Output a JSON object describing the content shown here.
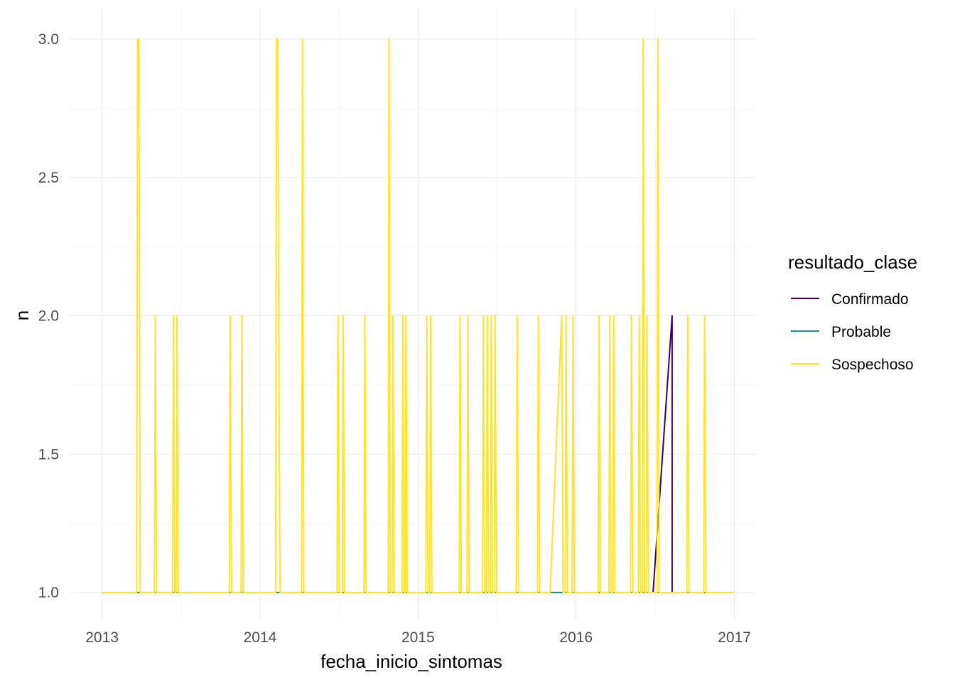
{
  "chart_data": {
    "type": "line",
    "title": "",
    "xlabel": "fecha_inicio_sintomas",
    "ylabel": "n",
    "x_ticks": [
      "2013",
      "2014",
      "2015",
      "2016",
      "2017"
    ],
    "y_ticks": [
      "1.0",
      "1.5",
      "2.0",
      "2.5",
      "3.0"
    ],
    "xlim": [
      "2012-12-31",
      "2016-12-31"
    ],
    "ylim": [
      1.0,
      3.0
    ],
    "grid": true,
    "legend": {
      "title": "resultado_clase",
      "placement": "right",
      "entries": [
        "Confirmado",
        "Probable",
        "Sospechoso"
      ]
    },
    "series": [
      {
        "name": "Confirmado",
        "color": "#440154",
        "points": [
          [
            "2016-06-27",
            1
          ],
          [
            "2016-08-10",
            2
          ],
          [
            "2016-08-10",
            1
          ]
        ]
      },
      {
        "name": "Probable",
        "color": "#21908C",
        "points": [
          [
            "2012-12-31",
            1
          ],
          [
            "2016-12-31",
            1
          ]
        ]
      },
      {
        "name": "Sospechoso",
        "color": "#FDE725",
        "points": [
          [
            "2012-12-31",
            1
          ],
          [
            "2013-03-22",
            1
          ],
          [
            "2013-03-24",
            3
          ],
          [
            "2013-03-27",
            3
          ],
          [
            "2013-03-30",
            1
          ],
          [
            "2013-05-02",
            1
          ],
          [
            "2013-05-04",
            2
          ],
          [
            "2013-05-07",
            1
          ],
          [
            "2013-06-13",
            1
          ],
          [
            "2013-06-15",
            2
          ],
          [
            "2013-06-18",
            1
          ],
          [
            "2013-06-21",
            1
          ],
          [
            "2013-06-23",
            2
          ],
          [
            "2013-06-26",
            1
          ],
          [
            "2013-10-22",
            1
          ],
          [
            "2013-10-24",
            2
          ],
          [
            "2013-10-27",
            1
          ],
          [
            "2013-11-18",
            1
          ],
          [
            "2013-11-20",
            2
          ],
          [
            "2013-11-23",
            1
          ],
          [
            "2014-02-06",
            1
          ],
          [
            "2014-02-08",
            3
          ],
          [
            "2014-02-11",
            3
          ],
          [
            "2014-02-13",
            2
          ],
          [
            "2014-02-16",
            1
          ],
          [
            "2014-04-07",
            1
          ],
          [
            "2014-04-09",
            3
          ],
          [
            "2014-04-12",
            1
          ],
          [
            "2014-06-28",
            1
          ],
          [
            "2014-06-30",
            2
          ],
          [
            "2014-07-03",
            1
          ],
          [
            "2014-07-10",
            1
          ],
          [
            "2014-07-12",
            2
          ],
          [
            "2014-07-15",
            1
          ],
          [
            "2014-08-29",
            1
          ],
          [
            "2014-08-31",
            2
          ],
          [
            "2014-09-03",
            1
          ],
          [
            "2014-10-24",
            1
          ],
          [
            "2014-10-26",
            3
          ],
          [
            "2014-10-29",
            1
          ],
          [
            "2014-11-02",
            1
          ],
          [
            "2014-11-04",
            2
          ],
          [
            "2014-11-07",
            1
          ],
          [
            "2014-11-25",
            1
          ],
          [
            "2014-11-27",
            2
          ],
          [
            "2014-11-30",
            1
          ],
          [
            "2014-12-02",
            1
          ],
          [
            "2014-12-04",
            2
          ],
          [
            "2014-12-07",
            1
          ],
          [
            "2015-01-19",
            1
          ],
          [
            "2015-01-21",
            2
          ],
          [
            "2015-01-24",
            1
          ],
          [
            "2015-01-28",
            1
          ],
          [
            "2015-01-30",
            2
          ],
          [
            "2015-02-02",
            1
          ],
          [
            "2015-04-06",
            1
          ],
          [
            "2015-04-08",
            2
          ],
          [
            "2015-04-11",
            1
          ],
          [
            "2015-04-24",
            1
          ],
          [
            "2015-04-26",
            2
          ],
          [
            "2015-04-29",
            1
          ],
          [
            "2015-05-30",
            1
          ],
          [
            "2015-06-01",
            2
          ],
          [
            "2015-06-04",
            1
          ],
          [
            "2015-06-08",
            1
          ],
          [
            "2015-06-10",
            2
          ],
          [
            "2015-06-13",
            1
          ],
          [
            "2015-06-17",
            1
          ],
          [
            "2015-06-19",
            2
          ],
          [
            "2015-06-22",
            1
          ],
          [
            "2015-06-26",
            1
          ],
          [
            "2015-06-28",
            2
          ],
          [
            "2015-07-01",
            1
          ],
          [
            "2015-08-16",
            1
          ],
          [
            "2015-08-18",
            2
          ],
          [
            "2015-08-21",
            1
          ],
          [
            "2015-10-04",
            1
          ],
          [
            "2015-10-06",
            2
          ],
          [
            "2015-10-09",
            1
          ],
          [
            "2015-11-02",
            1
          ],
          [
            "2015-11-29",
            2
          ],
          [
            "2015-12-02",
            1
          ],
          [
            "2015-12-07",
            1
          ],
          [
            "2015-12-09",
            2
          ],
          [
            "2015-12-12",
            1
          ],
          [
            "2015-12-23",
            1
          ],
          [
            "2015-12-25",
            2
          ],
          [
            "2015-12-28",
            1
          ],
          [
            "2016-02-21",
            1
          ],
          [
            "2016-02-23",
            2
          ],
          [
            "2016-02-26",
            1
          ],
          [
            "2016-03-17",
            1
          ],
          [
            "2016-03-19",
            2
          ],
          [
            "2016-03-22",
            1
          ],
          [
            "2016-03-26",
            1
          ],
          [
            "2016-03-28",
            2
          ],
          [
            "2016-03-31",
            1
          ],
          [
            "2016-05-06",
            1
          ],
          [
            "2016-05-08",
            2
          ],
          [
            "2016-05-11",
            1
          ],
          [
            "2016-05-24",
            1
          ],
          [
            "2016-05-26",
            2
          ],
          [
            "2016-05-29",
            1
          ],
          [
            "2016-06-02",
            1
          ],
          [
            "2016-06-04",
            3
          ],
          [
            "2016-06-07",
            1
          ],
          [
            "2016-06-11",
            1
          ],
          [
            "2016-06-13",
            2
          ],
          [
            "2016-06-16",
            1
          ],
          [
            "2016-07-06",
            1
          ],
          [
            "2016-07-08",
            3
          ],
          [
            "2016-07-11",
            1
          ],
          [
            "2016-09-13",
            1
          ],
          [
            "2016-09-15",
            2
          ],
          [
            "2016-09-18",
            1
          ],
          [
            "2016-10-22",
            1
          ],
          [
            "2016-10-24",
            2
          ],
          [
            "2016-10-27",
            1
          ],
          [
            "2016-12-31",
            1
          ]
        ]
      }
    ]
  }
}
